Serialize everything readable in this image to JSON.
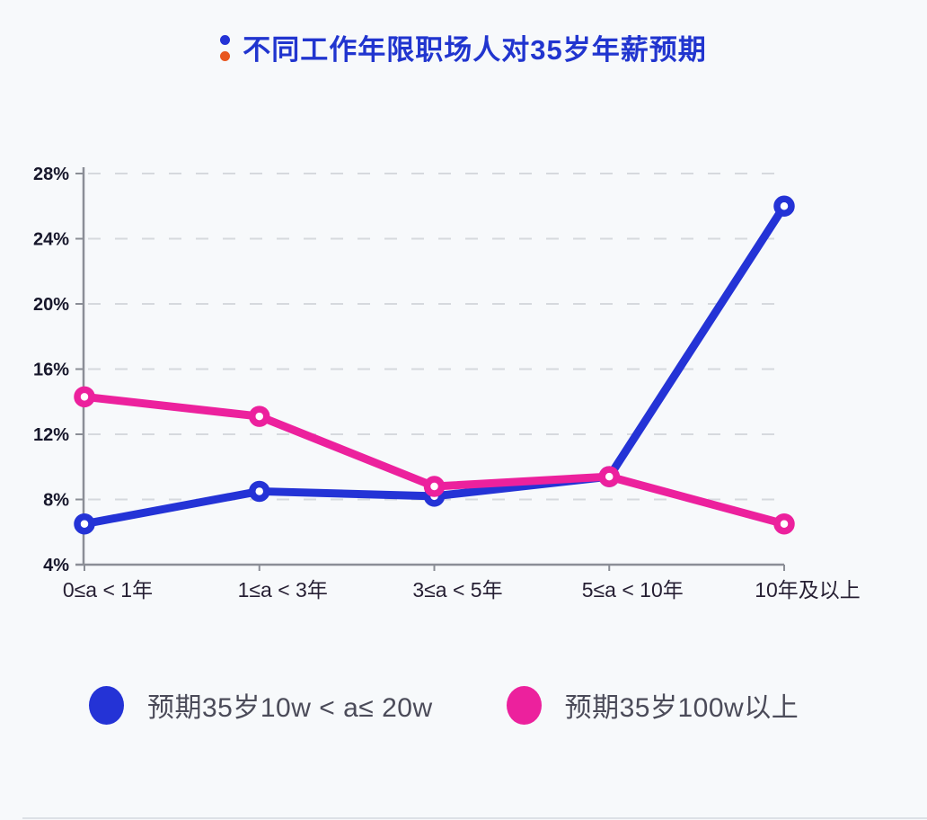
{
  "title": {
    "text": "不同工作年限职场人对35岁年薪预期",
    "color": "#2135cf",
    "icon_dot_top_color": "#2433d6",
    "icon_dot_bottom_color": "#e8571f"
  },
  "chart_data": {
    "type": "line",
    "title": "不同工作年限职场人对35岁年薪预期",
    "categories": [
      "0≤a < 1年",
      "1≤a < 3年",
      "3≤a < 5年",
      "5≤a < 10年",
      "10年及以上"
    ],
    "series": [
      {
        "name": "预期35岁10w < a≤ 20w",
        "color": "#2433d6",
        "values": [
          6.5,
          8.5,
          8.2,
          9.4,
          26
        ]
      },
      {
        "name": "预期35岁100w以上",
        "color": "#ec219d",
        "values": [
          14.3,
          13.1,
          8.8,
          9.4,
          6.5
        ]
      }
    ],
    "xlabel": "",
    "ylabel": "",
    "ylim": [
      4,
      28
    ],
    "ytick_step": 4,
    "ytick_suffix": "%",
    "grid": "horizontal-dashed",
    "legend_position": "bottom",
    "marker": "open-circle",
    "axis_color": "#8b8e96",
    "grid_color": "#d6d9de",
    "ytick_label_color": "#17172b",
    "xtick_label_color": "#261f33"
  }
}
